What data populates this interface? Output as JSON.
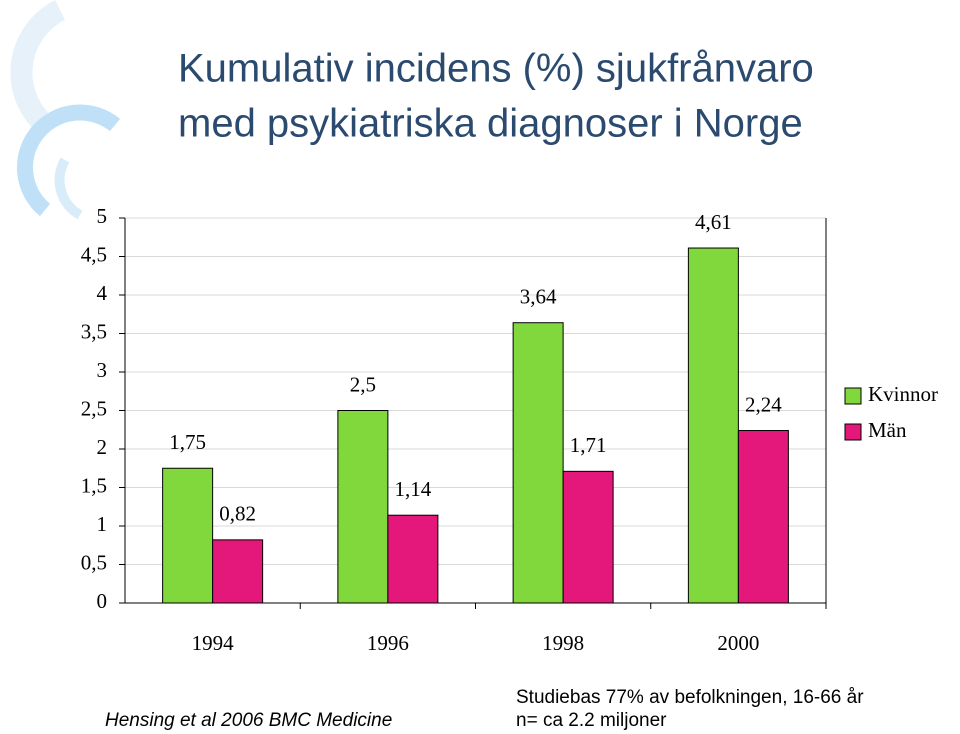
{
  "chart_data": {
    "type": "bar",
    "title": [
      "Kumulativ incidens (%) sjukfrånvaro",
      "med psykiatriska diagnoser i Norge"
    ],
    "categories": [
      "1994",
      "1996",
      "1998",
      "2000"
    ],
    "series": [
      {
        "name": "Kvinnor",
        "color": "#80d83c",
        "values": [
          1.75,
          2.5,
          3.64,
          4.61
        ],
        "value_labels": [
          "1,75",
          "2,5",
          "3,64",
          "4,61"
        ]
      },
      {
        "name": "Män",
        "color": "#e4187a",
        "values": [
          0.82,
          1.14,
          1.71,
          2.24
        ],
        "value_labels": [
          "0,82",
          "1,14",
          "1,71",
          "2,24"
        ]
      }
    ],
    "ylim": [
      0,
      5
    ],
    "yticks": [
      0,
      {
        "value": 0.5,
        "label": "0,5"
      },
      1,
      {
        "value": 1.5,
        "label": "1,5"
      },
      2,
      {
        "value": 2.5,
        "label": "2,5"
      },
      3,
      {
        "value": 3.5,
        "label": "3,5"
      },
      4,
      {
        "value": 4.5,
        "label": "4,5"
      },
      5
    ],
    "grid": true,
    "legend": "right",
    "annotations": [
      "Hensing et al 2006 BMC Medicine",
      "Studiebas 77% av befolkningen, 16-66 år",
      "n= ca 2.2 miljoner"
    ]
  }
}
